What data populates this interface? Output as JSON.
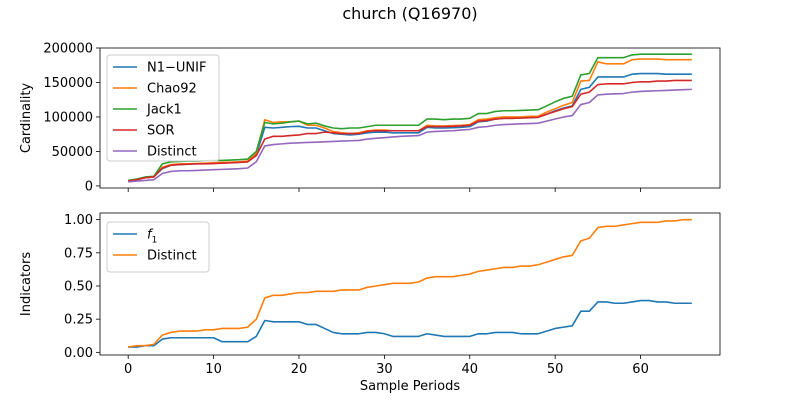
{
  "figure": {
    "title": "church (Q16970)"
  },
  "chart_data": [
    {
      "type": "line",
      "ylabel": "Cardinality",
      "xlabel": "",
      "xlim": [
        -3.3,
        69.3
      ],
      "ylim": [
        -3000,
        200000
      ],
      "yticks": [
        0,
        50000,
        100000,
        150000,
        200000
      ],
      "ytick_labels": [
        "0",
        "50000",
        "100000",
        "150000",
        "200000"
      ],
      "xticks": [
        0,
        10,
        20,
        30,
        40,
        50,
        60
      ],
      "xtick_labels": [
        "",
        "",
        "",
        "",
        "",
        "",
        ""
      ],
      "grid": false,
      "legend": "upper left",
      "x_start": 0,
      "series": [
        {
          "name": "N1−UNIF",
          "color": "#1f77b4",
          "values": [
            7000,
            9000,
            12000,
            13000,
            25000,
            30000,
            31000,
            31500,
            32000,
            32500,
            33000,
            33500,
            34000,
            34500,
            35000,
            45000,
            85000,
            84000,
            85000,
            86000,
            86500,
            84000,
            84000,
            80000,
            76000,
            75000,
            74000,
            75000,
            77000,
            78000,
            78000,
            77000,
            77000,
            77000,
            77000,
            85000,
            84000,
            84000,
            84500,
            85000,
            86000,
            93000,
            94000,
            97000,
            98000,
            98000,
            98500,
            99000,
            99500,
            104000,
            109000,
            113000,
            116000,
            140000,
            143000,
            158000,
            158000,
            158000,
            158000,
            162000,
            163000,
            163000,
            163000,
            162000,
            162000,
            162000,
            162000
          ]
        },
        {
          "name": "Chao92",
          "color": "#ff7f0e",
          "values": [
            7000,
            9000,
            12000,
            13000,
            27000,
            31000,
            32000,
            32000,
            32500,
            33000,
            33500,
            34000,
            34500,
            35000,
            36000,
            48000,
            96000,
            92000,
            93000,
            93000,
            94000,
            88000,
            88000,
            84000,
            79000,
            77000,
            76000,
            77000,
            80000,
            81000,
            81000,
            80000,
            80000,
            80000,
            80000,
            88000,
            87000,
            87000,
            87500,
            88000,
            89000,
            96000,
            97000,
            99000,
            100000,
            100000,
            100000,
            101000,
            101000,
            107000,
            112000,
            117000,
            121000,
            152000,
            153000,
            180000,
            177000,
            177000,
            177000,
            183000,
            184000,
            184000,
            184000,
            183000,
            183000,
            183000,
            183000
          ]
        },
        {
          "name": "Jack1",
          "color": "#2ca02c",
          "values": [
            8000,
            10000,
            13000,
            14000,
            32000,
            35000,
            35500,
            36000,
            36000,
            36500,
            37000,
            37000,
            37500,
            38000,
            39000,
            50000,
            92000,
            90000,
            91000,
            93000,
            94000,
            90000,
            91000,
            87000,
            84000,
            83000,
            84000,
            84000,
            86000,
            88000,
            88000,
            88000,
            88000,
            88000,
            88000,
            97000,
            97000,
            96000,
            97000,
            97000,
            98000,
            105000,
            105000,
            108000,
            109000,
            109000,
            109500,
            110000,
            110500,
            116000,
            122000,
            127000,
            130000,
            161000,
            163000,
            186000,
            186000,
            186000,
            186000,
            190000,
            191000,
            191000,
            191000,
            191000,
            191000,
            191000,
            191000
          ]
        },
        {
          "name": "SOR",
          "color": "#d62728",
          "values": [
            7000,
            9000,
            12000,
            13000,
            26000,
            30000,
            31000,
            31500,
            32000,
            32000,
            32500,
            33000,
            33500,
            34000,
            35000,
            44000,
            68000,
            72000,
            72000,
            73000,
            74000,
            76000,
            76000,
            78000,
            77000,
            76000,
            76000,
            76000,
            79000,
            80000,
            80000,
            80000,
            80000,
            80000,
            80000,
            86000,
            86000,
            86000,
            86500,
            87000,
            88000,
            94000,
            95000,
            97000,
            98000,
            98000,
            98500,
            99000,
            99500,
            104000,
            108000,
            112000,
            115000,
            133000,
            136000,
            147000,
            148000,
            148000,
            148000,
            150000,
            151000,
            151000,
            152000,
            152000,
            153000,
            153000,
            153000
          ]
        },
        {
          "name": "Distinct",
          "color": "#9467bd",
          "values": [
            6000,
            7000,
            8000,
            9000,
            18000,
            21000,
            22000,
            22000,
            22500,
            23000,
            23500,
            24000,
            24500,
            25000,
            26000,
            35000,
            58000,
            60000,
            61000,
            62000,
            62500,
            63000,
            63500,
            64000,
            64500,
            65000,
            65500,
            66000,
            68000,
            69000,
            70000,
            71000,
            72000,
            72500,
            73000,
            78000,
            79000,
            79500,
            80000,
            81000,
            82000,
            85000,
            86000,
            88000,
            89000,
            89500,
            90000,
            90500,
            91000,
            94000,
            97000,
            100000,
            102000,
            118000,
            121000,
            132000,
            133000,
            133500,
            134000,
            136000,
            137000,
            137500,
            138000,
            138500,
            139000,
            139500,
            140000
          ]
        }
      ]
    },
    {
      "type": "line",
      "ylabel": "Indicators",
      "xlabel": "Sample Periods",
      "xlim": [
        -3.3,
        69.3
      ],
      "ylim": [
        -0.02,
        1.05
      ],
      "yticks": [
        0.0,
        0.25,
        0.5,
        0.75,
        1.0
      ],
      "ytick_labels": [
        "0.00",
        "0.25",
        "0.50",
        "0.75",
        "1.00"
      ],
      "xticks": [
        0,
        10,
        20,
        30,
        40,
        50,
        60
      ],
      "xtick_labels": [
        "0",
        "10",
        "20",
        "30",
        "40",
        "50",
        "60"
      ],
      "grid": false,
      "legend": "upper left",
      "x_start": 0,
      "series": [
        {
          "name": "f1",
          "color": "#1f77b4",
          "values": [
            0.04,
            0.04,
            0.05,
            0.05,
            0.1,
            0.11,
            0.11,
            0.11,
            0.11,
            0.11,
            0.11,
            0.08,
            0.08,
            0.08,
            0.08,
            0.12,
            0.24,
            0.23,
            0.23,
            0.23,
            0.23,
            0.21,
            0.21,
            0.18,
            0.15,
            0.14,
            0.14,
            0.14,
            0.15,
            0.15,
            0.14,
            0.12,
            0.12,
            0.12,
            0.12,
            0.14,
            0.13,
            0.12,
            0.12,
            0.12,
            0.12,
            0.14,
            0.14,
            0.15,
            0.15,
            0.15,
            0.14,
            0.14,
            0.14,
            0.16,
            0.18,
            0.19,
            0.2,
            0.31,
            0.31,
            0.38,
            0.38,
            0.37,
            0.37,
            0.38,
            0.39,
            0.39,
            0.38,
            0.38,
            0.37,
            0.37,
            0.37
          ]
        },
        {
          "name": "Distinct",
          "color": "#ff7f0e",
          "values": [
            0.04,
            0.05,
            0.05,
            0.06,
            0.13,
            0.15,
            0.16,
            0.16,
            0.16,
            0.17,
            0.17,
            0.18,
            0.18,
            0.18,
            0.19,
            0.25,
            0.41,
            0.43,
            0.43,
            0.44,
            0.45,
            0.45,
            0.46,
            0.46,
            0.46,
            0.47,
            0.47,
            0.47,
            0.49,
            0.5,
            0.51,
            0.52,
            0.52,
            0.52,
            0.53,
            0.56,
            0.57,
            0.57,
            0.57,
            0.58,
            0.59,
            0.61,
            0.62,
            0.63,
            0.64,
            0.64,
            0.65,
            0.65,
            0.66,
            0.68,
            0.7,
            0.72,
            0.73,
            0.84,
            0.86,
            0.94,
            0.95,
            0.95,
            0.96,
            0.97,
            0.98,
            0.98,
            0.98,
            0.99,
            0.99,
            1.0,
            1.0
          ]
        }
      ]
    }
  ]
}
